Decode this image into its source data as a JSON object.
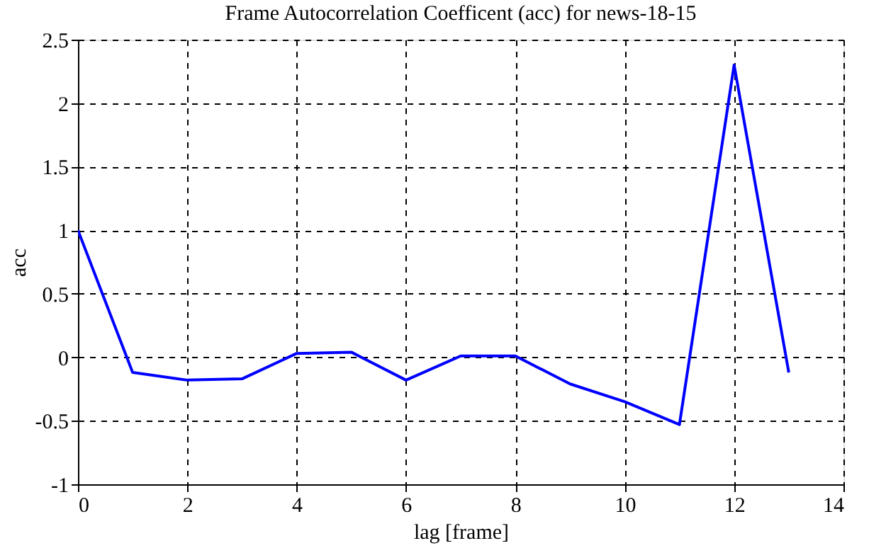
{
  "chart_data": {
    "type": "line",
    "title": "Frame Autocorrelation Coefficent (acc) for news-18-15",
    "xlabel": "lag [frame]",
    "ylabel": "acc",
    "x": [
      0,
      1,
      2,
      3,
      4,
      5,
      6,
      7,
      8,
      9,
      10,
      11,
      12,
      13
    ],
    "series": [
      {
        "color": "#0000ff",
        "values": [
          1.0,
          -0.12,
          -0.18,
          -0.17,
          0.03,
          0.04,
          -0.18,
          0.01,
          0.01,
          -0.21,
          -0.35,
          -0.53,
          2.3,
          -0.12
        ]
      }
    ],
    "xlim": [
      0,
      14
    ],
    "xticks": [
      0,
      2,
      4,
      6,
      8,
      10,
      12,
      14
    ],
    "ylim": [
      -1,
      2.5
    ],
    "yticks": [
      -1,
      -0.5,
      0,
      0.5,
      1,
      1.5,
      2,
      2.5
    ],
    "grid": true,
    "legend": false,
    "marker": "none",
    "line_style": "solid"
  }
}
